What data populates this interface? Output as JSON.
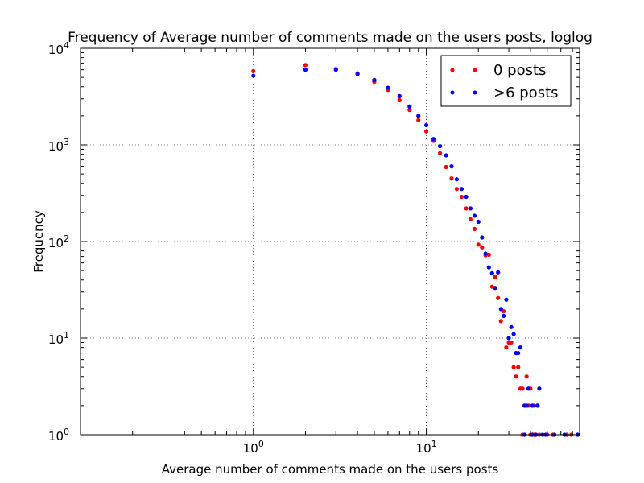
{
  "chart_data": {
    "type": "scatter",
    "title": "Frequency of Average number of comments made on the users posts, loglog",
    "xlabel": "Average number of comments made on the users posts",
    "ylabel": "Frequency",
    "xscale": "log",
    "yscale": "log",
    "xlim": [
      0.1,
      77
    ],
    "ylim": [
      1,
      10000
    ],
    "grid": true,
    "legend_position": "top-right",
    "x_ticks": [
      {
        "base": "10",
        "exp": "0",
        "value": 1
      },
      {
        "base": "10",
        "exp": "1",
        "value": 10
      }
    ],
    "y_ticks": [
      {
        "base": "10",
        "exp": "0",
        "value": 1
      },
      {
        "base": "10",
        "exp": "1",
        "value": 10
      },
      {
        "base": "10",
        "exp": "2",
        "value": 100
      },
      {
        "base": "10",
        "exp": "3",
        "value": 1000
      },
      {
        "base": "10",
        "exp": "4",
        "value": 10000
      }
    ],
    "series": [
      {
        "name": "0 posts",
        "color": "#ff0000",
        "points": [
          [
            1,
            5800
          ],
          [
            2,
            6700
          ],
          [
            3,
            6100
          ],
          [
            4,
            5500
          ],
          [
            5,
            4500
          ],
          [
            6,
            3700
          ],
          [
            7,
            2900
          ],
          [
            8,
            2300
          ],
          [
            9,
            1800
          ],
          [
            10,
            1380
          ],
          [
            11,
            1100
          ],
          [
            12,
            820
          ],
          [
            13,
            590
          ],
          [
            14,
            450
          ],
          [
            15,
            350
          ],
          [
            16,
            290
          ],
          [
            17,
            220
          ],
          [
            18,
            170
          ],
          [
            19,
            135
          ],
          [
            20,
            93
          ],
          [
            21,
            87
          ],
          [
            22,
            72
          ],
          [
            23,
            73
          ],
          [
            24,
            34
          ],
          [
            25,
            43
          ],
          [
            26,
            26
          ],
          [
            27,
            15
          ],
          [
            28,
            19
          ],
          [
            29,
            8
          ],
          [
            30,
            9
          ],
          [
            31,
            9
          ],
          [
            32,
            5
          ],
          [
            33,
            4
          ],
          [
            34,
            5
          ],
          [
            35,
            3
          ],
          [
            36,
            3
          ],
          [
            37,
            2
          ],
          [
            38,
            4
          ],
          [
            39,
            2
          ],
          [
            40,
            3
          ],
          [
            42,
            2
          ],
          [
            44,
            2
          ],
          [
            36,
            1
          ],
          [
            40,
            1
          ],
          [
            42,
            1
          ],
          [
            45,
            1
          ],
          [
            50,
            1
          ],
          [
            54,
            1
          ],
          [
            65,
            1
          ],
          [
            69,
            1
          ]
        ]
      },
      {
        "name": ">6 posts",
        "color": "#0000ff",
        "points": [
          [
            1,
            5200
          ],
          [
            2,
            6000
          ],
          [
            3,
            6000
          ],
          [
            4,
            5400
          ],
          [
            5,
            4700
          ],
          [
            6,
            3900
          ],
          [
            7,
            3200
          ],
          [
            8,
            2500
          ],
          [
            9,
            2000
          ],
          [
            10,
            1600
          ],
          [
            11,
            1150
          ],
          [
            12,
            970
          ],
          [
            13,
            780
          ],
          [
            14,
            600
          ],
          [
            15,
            440
          ],
          [
            16,
            350
          ],
          [
            17,
            290
          ],
          [
            18,
            220
          ],
          [
            19,
            185
          ],
          [
            20,
            160
          ],
          [
            21,
            110
          ],
          [
            22,
            75
          ],
          [
            23,
            54
          ],
          [
            24,
            47
          ],
          [
            25,
            33
          ],
          [
            26,
            48
          ],
          [
            27,
            20
          ],
          [
            28,
            17
          ],
          [
            29,
            25
          ],
          [
            30,
            10
          ],
          [
            31,
            13
          ],
          [
            32,
            11
          ],
          [
            33,
            7
          ],
          [
            34,
            7
          ],
          [
            35,
            8
          ],
          [
            37,
            2
          ],
          [
            38,
            2
          ],
          [
            39,
            3
          ],
          [
            41,
            2
          ],
          [
            44,
            2
          ],
          [
            45,
            3
          ],
          [
            37,
            1
          ],
          [
            41,
            1
          ],
          [
            43,
            1
          ],
          [
            47,
            1
          ],
          [
            49,
            1
          ],
          [
            55,
            1
          ],
          [
            63,
            1
          ],
          [
            75,
            1
          ]
        ]
      }
    ]
  }
}
